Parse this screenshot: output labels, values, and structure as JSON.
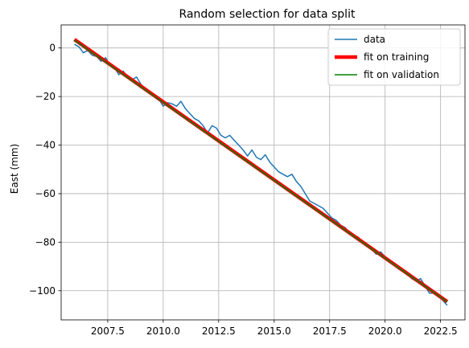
{
  "chart_data": {
    "type": "line",
    "title": "Random selection for data split",
    "xlabel": "",
    "ylabel": "East (mm)",
    "xlim": [
      2005.4,
      2023.6
    ],
    "ylim": [
      -112,
      9.5
    ],
    "xticks": [
      2007.5,
      2010.0,
      2012.5,
      2015.0,
      2017.5,
      2020.0,
      2022.5
    ],
    "xtick_labels": [
      "2007.5",
      "2010.0",
      "2012.5",
      "2015.0",
      "2017.5",
      "2020.0",
      "2022.5"
    ],
    "yticks": [
      0,
      -20,
      -40,
      -60,
      -80,
      -100
    ],
    "ytick_labels": [
      "0",
      "−20",
      "−40",
      "−60",
      "−80",
      "−100"
    ],
    "grid": true,
    "legend_position": "upper right",
    "legend": [
      "data",
      "fit on training",
      "fit on validation"
    ],
    "series": [
      {
        "name": "data",
        "color": "#1f77b4",
        "x": [
          2006.0,
          2006.2,
          2006.4,
          2006.6,
          2006.8,
          2007.0,
          2007.2,
          2007.4,
          2007.6,
          2007.8,
          2008.0,
          2008.2,
          2008.4,
          2008.6,
          2008.8,
          2009.0,
          2009.2,
          2009.4,
          2009.6,
          2009.8,
          2010.0,
          2010.2,
          2010.4,
          2010.6,
          2010.8,
          2011.0,
          2011.2,
          2011.4,
          2011.6,
          2011.8,
          2012.0,
          2012.2,
          2012.4,
          2012.6,
          2012.8,
          2013.0,
          2013.2,
          2013.4,
          2013.6,
          2013.8,
          2014.0,
          2014.2,
          2014.4,
          2014.6,
          2014.8,
          2015.0,
          2015.2,
          2015.4,
          2015.6,
          2015.8,
          2016.0,
          2016.2,
          2016.4,
          2016.6,
          2016.8,
          2017.0,
          2017.2,
          2017.4,
          2017.6,
          2017.8,
          2018.0,
          2018.2,
          2018.4,
          2018.6,
          2018.8,
          2019.0,
          2019.2,
          2019.4,
          2019.6,
          2019.8,
          2020.0,
          2020.2,
          2020.4,
          2020.6,
          2020.8,
          2021.0,
          2021.2,
          2021.4,
          2021.6,
          2021.8,
          2022.0,
          2022.2,
          2022.4,
          2022.6,
          2022.8
        ],
        "y": [
          1.5,
          0.5,
          -2.0,
          -1.0,
          -3.0,
          -3.5,
          -5.5,
          -4.0,
          -7.0,
          -8.0,
          -11.0,
          -9.5,
          -12.0,
          -13.0,
          -12.0,
          -15.0,
          -17.0,
          -18.0,
          -19.5,
          -21.0,
          -24.0,
          -22.5,
          -23.0,
          -24.0,
          -22.0,
          -25.0,
          -27.0,
          -29.0,
          -30.0,
          -32.0,
          -35.0,
          -32.0,
          -33.0,
          -36.0,
          -37.0,
          -36.0,
          -38.0,
          -40.0,
          -42.0,
          -44.5,
          -42.0,
          -45.0,
          -46.0,
          -44.0,
          -47.0,
          -49.0,
          -51.0,
          -52.0,
          -53.0,
          -52.0,
          -55.0,
          -57.0,
          -60.0,
          -63.0,
          -64.0,
          -65.0,
          -66.0,
          -68.0,
          -70.0,
          -71.0,
          -73.0,
          -74.0,
          -76.0,
          -77.0,
          -78.0,
          -80.0,
          -81.0,
          -83.0,
          -85.0,
          -84.0,
          -86.0,
          -88.0,
          -89.0,
          -91.0,
          -92.0,
          -93.0,
          -95.0,
          -96.0,
          -95.0,
          -98.0,
          -101.0,
          -101.0,
          -102.0,
          -104.0,
          -106.0
        ]
      },
      {
        "name": "fit on training",
        "color": "#ff0000",
        "x": [
          2006.0,
          2022.8
        ],
        "y": [
          3.5,
          -104.5
        ]
      },
      {
        "name": "fit on validation",
        "color": "#008000",
        "x": [
          2006.0,
          2022.8
        ],
        "y": [
          3.2,
          -104.6
        ]
      }
    ]
  }
}
